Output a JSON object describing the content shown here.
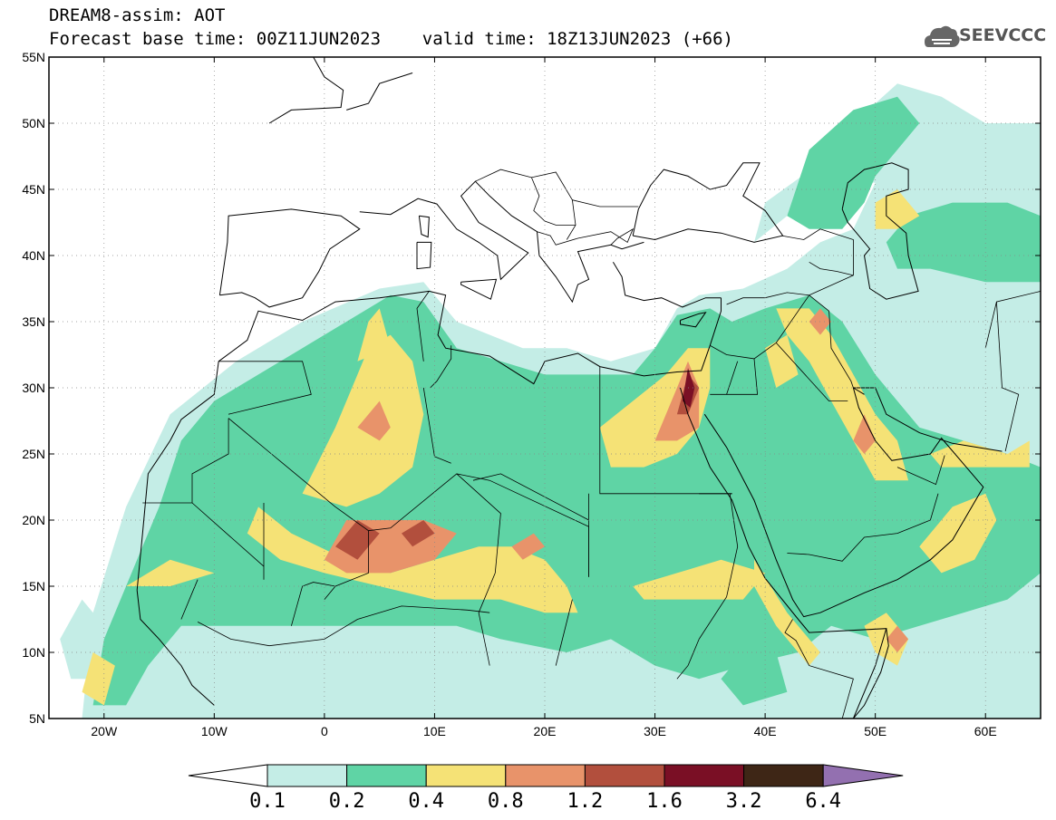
{
  "header": {
    "title_line1": "DREAM8-assim: AOT",
    "title_line2": "Forecast base time: 00Z11JUN2023    valid time: 18Z13JUN2023 (+66)",
    "logo_text": "SEEVCCC",
    "logo_icon": "cloud-icon"
  },
  "map": {
    "variable": "AOT",
    "lon_range": [
      -25,
      65
    ],
    "lat_range": [
      5,
      55
    ],
    "lon_ticks": [
      {
        "value": -20,
        "label": "20W"
      },
      {
        "value": -10,
        "label": "10W"
      },
      {
        "value": 0,
        "label": "0"
      },
      {
        "value": 10,
        "label": "10E"
      },
      {
        "value": 20,
        "label": "20E"
      },
      {
        "value": 30,
        "label": "30E"
      },
      {
        "value": 40,
        "label": "40E"
      },
      {
        "value": 50,
        "label": "50E"
      },
      {
        "value": 60,
        "label": "60E"
      }
    ],
    "lat_ticks": [
      {
        "value": 55,
        "label": "55N"
      },
      {
        "value": 50,
        "label": "50N"
      },
      {
        "value": 45,
        "label": "45N"
      },
      {
        "value": 40,
        "label": "40N"
      },
      {
        "value": 35,
        "label": "35N"
      },
      {
        "value": 30,
        "label": "30N"
      },
      {
        "value": 25,
        "label": "25N"
      },
      {
        "value": 20,
        "label": "20N"
      },
      {
        "value": 15,
        "label": "15N"
      },
      {
        "value": 10,
        "label": "10N"
      },
      {
        "value": 5,
        "label": "5N"
      }
    ],
    "gridlines": true,
    "gridline_style": "dotted",
    "colors": {
      "level_0.1_0.2": "#c4ede6",
      "level_0.2_0.4": "#5fd4a5",
      "level_0.4_0.8": "#f5e276",
      "level_0.8_1.2": "#e8936a",
      "level_1.2_1.6": "#b24f3d",
      "level_1.6_3.2": "#7a0f25",
      "level_3.2_6.4": "#3e2616",
      "over_6.4": "#9370b0"
    }
  },
  "colorbar": {
    "boundaries": [
      "0.1",
      "0.2",
      "0.4",
      "0.8",
      "1.2",
      "1.6",
      "3.2",
      "6.4"
    ],
    "colors": [
      "#ffffff",
      "#c4ede6",
      "#5fd4a5",
      "#f5e276",
      "#e8936a",
      "#b24f3d",
      "#7a0f25",
      "#3e2616",
      "#9370b0"
    ]
  }
}
